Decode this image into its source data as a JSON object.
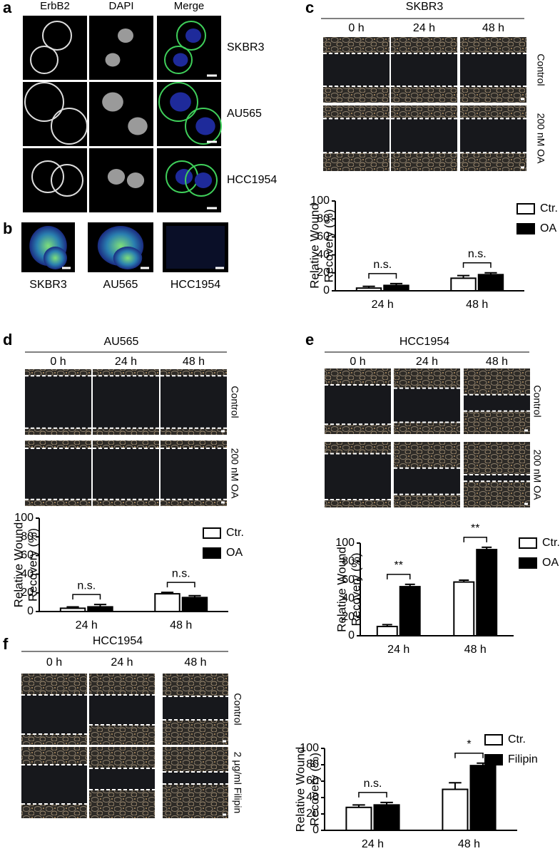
{
  "panels": {
    "a": {
      "label": "a",
      "columns": [
        "ErbB2",
        "DAPI",
        "Merge"
      ],
      "rows": [
        "SKBR3",
        "AU565",
        "HCC1954"
      ]
    },
    "b": {
      "label": "b",
      "samples": [
        "SKBR3",
        "AU565",
        "HCC1954"
      ]
    },
    "c": {
      "label": "c",
      "title": "SKBR3",
      "columns": [
        "0 h",
        "24 h",
        "48 h"
      ],
      "rows": [
        "Control",
        "200 nM OA"
      ]
    },
    "d": {
      "label": "d",
      "title": "AU565",
      "columns": [
        "0 h",
        "24 h",
        "48 h"
      ],
      "rows": [
        "Control",
        "200 nM OA"
      ]
    },
    "e": {
      "label": "e",
      "title": "HCC1954",
      "columns": [
        "0 h",
        "24 h",
        "48 h"
      ],
      "rows": [
        "Control",
        "200 nM OA"
      ]
    },
    "f": {
      "label": "f",
      "title": "HCC1954",
      "columns": [
        "0 h",
        "24 h",
        "48 h"
      ],
      "rows": [
        "Control",
        "2 μg/ml Filipin"
      ]
    }
  },
  "chart_data": [
    {
      "type": "bar",
      "y_label": [
        "Relative Wound",
        "Recovery (%)"
      ],
      "categories": [
        "24 h",
        "48 h"
      ],
      "series": [
        {
          "name": "Ctr.",
          "color": "#ffffff",
          "values": [
            3,
            14
          ],
          "errors": [
            2,
            3
          ]
        },
        {
          "name": "OA",
          "color": "#000000",
          "values": [
            6,
            18
          ],
          "errors": [
            2,
            2
          ]
        }
      ],
      "annotations": [
        "n.s.",
        "n.s."
      ],
      "ylim": [
        0,
        100
      ],
      "yticks": [
        0,
        20,
        40,
        60,
        80,
        100
      ],
      "legend": "right"
    },
    {
      "type": "bar",
      "y_label": [
        "Relative Wound",
        "Recovery (%)"
      ],
      "categories": [
        "24 h",
        "48 h"
      ],
      "series": [
        {
          "name": "Ctr.",
          "color": "#ffffff",
          "values": [
            3.5,
            19
          ],
          "errors": [
            1.5,
            1.5
          ]
        },
        {
          "name": "OA",
          "color": "#000000",
          "values": [
            5,
            15
          ],
          "errors": [
            2.5,
            2
          ]
        }
      ],
      "annotations": [
        "n.s.",
        "n.s."
      ],
      "ylim": [
        0,
        100
      ],
      "yticks": [
        0,
        20,
        40,
        60,
        80,
        100
      ],
      "legend": "right"
    },
    {
      "type": "bar",
      "y_label": [
        "Relative Wound",
        "Recovery (%)"
      ],
      "categories": [
        "24 h",
        "48 h"
      ],
      "series": [
        {
          "name": "Ctr.",
          "color": "#ffffff",
          "values": [
            10,
            58
          ],
          "errors": [
            2,
            2
          ]
        },
        {
          "name": "OA",
          "color": "#000000",
          "values": [
            53,
            93
          ],
          "errors": [
            2.5,
            2.5
          ]
        }
      ],
      "annotations": [
        "**",
        "**"
      ],
      "ylim": [
        0,
        100
      ],
      "yticks": [
        0,
        20,
        40,
        60,
        80,
        100
      ],
      "legend": "right"
    },
    {
      "type": "bar",
      "y_label": [
        "Relative Wound",
        "Recovery (%)"
      ],
      "categories": [
        "24 h",
        "48 h"
      ],
      "series": [
        {
          "name": "Ctr.",
          "color": "#ffffff",
          "values": [
            28,
            50
          ],
          "errors": [
            3,
            8
          ]
        },
        {
          "name": "Filipin",
          "color": "#000000",
          "values": [
            31,
            79
          ],
          "errors": [
            3,
            3
          ]
        }
      ],
      "annotations": [
        "n.s.",
        "*"
      ],
      "ylim": [
        0,
        100
      ],
      "yticks": [
        0,
        20,
        40,
        60,
        80,
        100
      ],
      "legend": "right"
    }
  ]
}
